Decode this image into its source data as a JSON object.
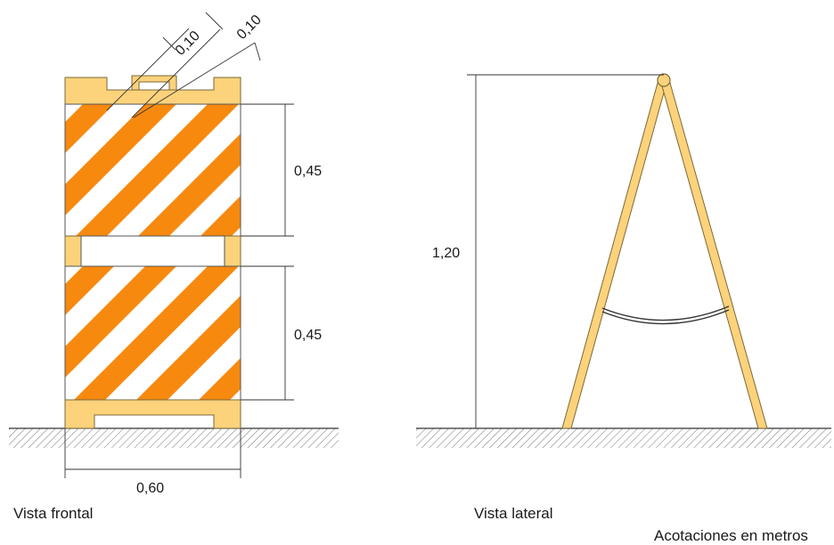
{
  "front_view": {
    "caption": "Vista frontal",
    "dim_top_board": "0,45",
    "dim_bottom_board": "0,45",
    "dim_width": "0,60",
    "dim_stripe_1": "0,10",
    "dim_stripe_2": "0,10"
  },
  "side_view": {
    "caption": "Vista lateral",
    "dim_height": "1,20"
  },
  "note": "Acotaciones en metros",
  "colors": {
    "orange": "#f7890f",
    "frame": "#fcd27b",
    "frame_stroke": "#7a6a3a",
    "white": "#ffffff",
    "line": "#333333"
  }
}
